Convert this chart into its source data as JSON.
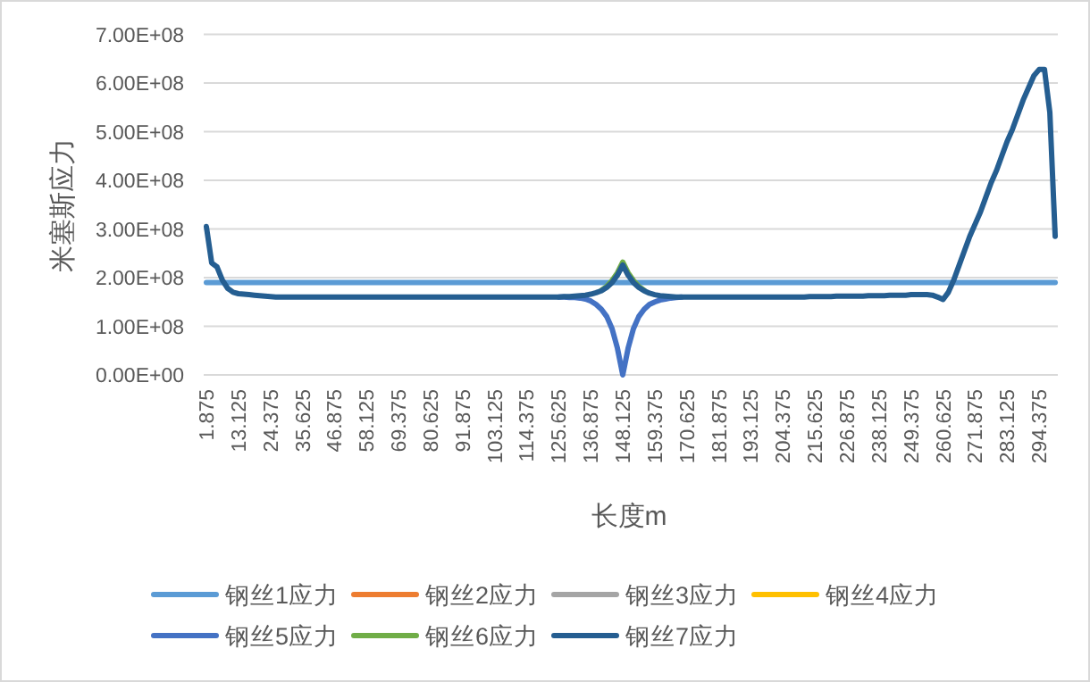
{
  "chart_data": {
    "type": "line",
    "xlabel": "长度m",
    "ylabel": "米塞斯应力",
    "categories": [
      "1.875",
      null,
      null,
      null,
      null,
      null,
      "13.125",
      null,
      null,
      null,
      null,
      null,
      "24.375",
      null,
      null,
      null,
      null,
      null,
      "35.625",
      null,
      null,
      null,
      null,
      null,
      "46.875",
      null,
      null,
      null,
      null,
      null,
      "58.125",
      null,
      null,
      null,
      null,
      null,
      "69.375",
      null,
      null,
      null,
      null,
      null,
      "80.625",
      null,
      null,
      null,
      null,
      null,
      "91.875",
      null,
      null,
      null,
      null,
      null,
      "103.125",
      null,
      null,
      null,
      null,
      null,
      "114.375",
      null,
      null,
      null,
      null,
      null,
      "125.625",
      null,
      null,
      null,
      null,
      null,
      "136.875",
      null,
      null,
      null,
      null,
      null,
      "148.125",
      null,
      null,
      null,
      null,
      null,
      "159.375",
      null,
      null,
      null,
      null,
      null,
      "170.625",
      null,
      null,
      null,
      null,
      null,
      "181.875",
      null,
      null,
      null,
      null,
      null,
      "193.125",
      null,
      null,
      null,
      null,
      null,
      "204.375",
      null,
      null,
      null,
      null,
      null,
      "215.625",
      null,
      null,
      null,
      null,
      null,
      "226.875",
      null,
      null,
      null,
      null,
      null,
      "238.125",
      null,
      null,
      null,
      null,
      null,
      "249.375",
      null,
      null,
      null,
      null,
      null,
      "260.625",
      null,
      null,
      null,
      null,
      null,
      "271.875",
      null,
      null,
      null,
      null,
      null,
      "283.125",
      null,
      null,
      null,
      null,
      null,
      "294.375",
      null,
      null,
      null
    ],
    "ylim": [
      0,
      700000000.0
    ],
    "yticks": [
      {
        "value": 0,
        "label": "0.00E+00"
      },
      {
        "value": 100000000.0,
        "label": "1.00E+08"
      },
      {
        "value": 200000000.0,
        "label": "2.00E+08"
      },
      {
        "value": 300000000.0,
        "label": "3.00E+08"
      },
      {
        "value": 400000000.0,
        "label": "4.00E+08"
      },
      {
        "value": 500000000.0,
        "label": "5.00E+08"
      },
      {
        "value": 600000000.0,
        "label": "6.00E+08"
      },
      {
        "value": 700000000.0,
        "label": "7.00E+08"
      }
    ],
    "grid": "y",
    "legend": "bottom",
    "marker": "none",
    "line_style": "solid",
    "series": [
      {
        "name": "钢丝1应力",
        "color": "#5b9bd5",
        "values": [
          190000000.0,
          190000000.0,
          190000000.0,
          190000000.0,
          190000000.0,
          190000000.0,
          190000000.0,
          190000000.0,
          190000000.0,
          190000000.0,
          190000000.0,
          190000000.0,
          190000000.0,
          190000000.0,
          190000000.0,
          190000000.0,
          190000000.0,
          190000000.0,
          190000000.0,
          190000000.0,
          190000000.0,
          190000000.0,
          190000000.0,
          190000000.0,
          190000000.0,
          190000000.0,
          190000000.0,
          190000000.0,
          190000000.0,
          190000000.0,
          190000000.0,
          190000000.0,
          190000000.0,
          190000000.0,
          190000000.0,
          190000000.0,
          190000000.0,
          190000000.0,
          190000000.0,
          190000000.0,
          190000000.0,
          190000000.0,
          190000000.0,
          190000000.0,
          190000000.0,
          190000000.0,
          190000000.0,
          190000000.0,
          190000000.0,
          190000000.0,
          190000000.0,
          190000000.0,
          190000000.0,
          190000000.0,
          190000000.0,
          190000000.0,
          190000000.0,
          190000000.0,
          190000000.0,
          190000000.0,
          190000000.0,
          190000000.0,
          190000000.0,
          190000000.0,
          190000000.0,
          190000000.0,
          190000000.0,
          190000000.0,
          190000000.0,
          190000000.0,
          190000000.0,
          190000000.0,
          190000000.0,
          190000000.0,
          190000000.0,
          190000000.0,
          190000000.0,
          190000000.0,
          190000000.0,
          190000000.0,
          190000000.0,
          190000000.0,
          190000000.0,
          190000000.0,
          190000000.0,
          190000000.0,
          190000000.0,
          190000000.0,
          190000000.0,
          190000000.0,
          190000000.0,
          190000000.0,
          190000000.0,
          190000000.0,
          190000000.0,
          190000000.0,
          190000000.0,
          190000000.0,
          190000000.0,
          190000000.0,
          190000000.0,
          190000000.0,
          190000000.0,
          190000000.0,
          190000000.0,
          190000000.0,
          190000000.0,
          190000000.0,
          190000000.0,
          190000000.0,
          190000000.0,
          190000000.0,
          190000000.0,
          190000000.0,
          190000000.0,
          190000000.0,
          190000000.0,
          190000000.0,
          190000000.0,
          190000000.0,
          190000000.0,
          190000000.0,
          190000000.0,
          190000000.0,
          190000000.0,
          190000000.0,
          190000000.0,
          190000000.0,
          190000000.0,
          190000000.0,
          190000000.0,
          190000000.0,
          190000000.0,
          190000000.0,
          190000000.0,
          190000000.0,
          190000000.0,
          190000000.0,
          190000000.0,
          190000000.0,
          190000000.0,
          190000000.0,
          190000000.0,
          190000000.0,
          190000000.0,
          190000000.0,
          190000000.0,
          190000000.0,
          190000000.0,
          190000000.0,
          190000000.0,
          190000000.0,
          190000000.0,
          190000000.0,
          190000000.0,
          190000000.0,
          190000000.0,
          190000000.0,
          190000000.0,
          190000000.0
        ]
      },
      {
        "name": "钢丝2应力",
        "color": "#ed7d31",
        "values": [
          null,
          null,
          null,
          null,
          null,
          null,
          null,
          null,
          null,
          null,
          null,
          null,
          null,
          null,
          null,
          null,
          null,
          null,
          null,
          null,
          null,
          null,
          null,
          null,
          null,
          null,
          null,
          null,
          null,
          null,
          null,
          null,
          null,
          null,
          null,
          null,
          null,
          null,
          null,
          null,
          null,
          null,
          null,
          null,
          null,
          null,
          null,
          null,
          null,
          null,
          null,
          null,
          null,
          null,
          null,
          null,
          null,
          null,
          null,
          null,
          null,
          null,
          null,
          null,
          null,
          null,
          null,
          null,
          null,
          null,
          null,
          null,
          null,
          null,
          null,
          null,
          null,
          null,
          null,
          null,
          null,
          null,
          null,
          null,
          null,
          null,
          null,
          null,
          null,
          null,
          null,
          null,
          null,
          null,
          null,
          null,
          null,
          null,
          null,
          null,
          null,
          null,
          null,
          null,
          null,
          null,
          null,
          null,
          null,
          null,
          null,
          null,
          null,
          null,
          null,
          null,
          null,
          null,
          null,
          null,
          null,
          null,
          null,
          null,
          null,
          null,
          null,
          null,
          null,
          null,
          null,
          null,
          null,
          null,
          null,
          null,
          null,
          null,
          null,
          null,
          null,
          null,
          null,
          null,
          null,
          null,
          null,
          null,
          null,
          null,
          null,
          null,
          null,
          null,
          null,
          null,
          null,
          null,
          null,
          null
        ]
      },
      {
        "name": "钢丝3应力",
        "color": "#a5a5a5",
        "values": [
          null,
          null,
          null,
          null,
          null,
          null,
          null,
          null,
          null,
          null,
          null,
          null,
          null,
          null,
          null,
          null,
          null,
          null,
          null,
          null,
          null,
          null,
          null,
          null,
          null,
          null,
          null,
          null,
          null,
          null,
          null,
          null,
          null,
          null,
          null,
          null,
          null,
          null,
          null,
          null,
          null,
          null,
          null,
          null,
          null,
          null,
          null,
          null,
          null,
          null,
          null,
          null,
          null,
          null,
          null,
          null,
          null,
          null,
          null,
          null,
          null,
          null,
          null,
          null,
          null,
          null,
          null,
          null,
          null,
          null,
          null,
          null,
          null,
          null,
          null,
          null,
          null,
          null,
          null,
          null,
          null,
          null,
          null,
          null,
          null,
          null,
          null,
          null,
          null,
          null,
          null,
          null,
          null,
          null,
          null,
          null,
          null,
          null,
          null,
          null,
          null,
          null,
          null,
          null,
          null,
          null,
          null,
          null,
          null,
          null,
          null,
          null,
          null,
          null,
          null,
          null,
          null,
          null,
          null,
          null,
          null,
          null,
          null,
          null,
          null,
          null,
          null,
          null,
          null,
          null,
          null,
          null,
          null,
          null,
          null,
          null,
          null,
          null,
          null,
          null,
          null,
          null,
          null,
          null,
          null,
          null,
          null,
          null,
          null,
          null,
          null,
          null,
          null,
          null,
          null,
          null,
          null,
          null,
          null,
          null
        ]
      },
      {
        "name": "钢丝4应力",
        "color": "#ffc000",
        "values": [
          null,
          null,
          null,
          null,
          null,
          null,
          null,
          null,
          null,
          null,
          null,
          null,
          null,
          null,
          null,
          null,
          null,
          null,
          null,
          null,
          null,
          null,
          null,
          null,
          null,
          null,
          null,
          null,
          null,
          null,
          null,
          null,
          null,
          null,
          null,
          null,
          null,
          null,
          null,
          null,
          null,
          null,
          null,
          null,
          null,
          null,
          null,
          null,
          null,
          null,
          null,
          null,
          null,
          null,
          null,
          null,
          null,
          null,
          null,
          null,
          null,
          null,
          null,
          null,
          null,
          null,
          null,
          null,
          null,
          null,
          null,
          null,
          null,
          null,
          null,
          null,
          null,
          null,
          null,
          null,
          null,
          null,
          null,
          null,
          null,
          null,
          null,
          null,
          null,
          null,
          null,
          null,
          null,
          null,
          null,
          null,
          null,
          null,
          null,
          null,
          null,
          null,
          null,
          null,
          null,
          null,
          null,
          null,
          null,
          null,
          null,
          null,
          null,
          null,
          null,
          null,
          null,
          null,
          null,
          null,
          null,
          null,
          null,
          null,
          null,
          null,
          null,
          null,
          null,
          null,
          null,
          null,
          null,
          null,
          null,
          null,
          null,
          null,
          null,
          null,
          null,
          null,
          null,
          null,
          null,
          null,
          null,
          null,
          null,
          null,
          null,
          null,
          null,
          null,
          null,
          null,
          null,
          null,
          null,
          null
        ]
      },
      {
        "name": "钢丝5应力",
        "color": "#4472c4",
        "values": [
          null,
          null,
          null,
          null,
          null,
          null,
          null,
          null,
          null,
          null,
          null,
          null,
          null,
          null,
          null,
          null,
          null,
          null,
          null,
          null,
          null,
          null,
          null,
          null,
          null,
          null,
          null,
          null,
          null,
          null,
          null,
          null,
          null,
          null,
          null,
          null,
          null,
          null,
          null,
          null,
          null,
          null,
          null,
          null,
          null,
          null,
          null,
          null,
          null,
          null,
          null,
          null,
          null,
          null,
          null,
          null,
          null,
          null,
          null,
          null,
          null,
          null,
          null,
          null,
          null,
          null,
          160000000.0,
          160000000.0,
          159000000.0,
          159000000.0,
          158000000.0,
          156000000.0,
          152000000.0,
          145000000.0,
          135000000.0,
          120000000.0,
          95000000.0,
          55000000.0,
          0,
          55000000.0,
          95000000.0,
          120000000.0,
          135000000.0,
          145000000.0,
          150000000.0,
          154000000.0,
          156000000.0,
          158000000.0,
          159000000.0,
          160000000.0,
          null,
          null,
          null,
          null,
          null,
          null,
          null,
          null,
          null,
          null,
          null,
          null,
          null,
          null,
          null,
          null,
          null,
          null,
          null,
          null,
          null,
          null,
          null,
          null,
          null,
          null,
          null,
          null,
          null,
          null,
          null,
          null,
          null,
          null,
          null,
          null,
          null,
          null,
          null,
          null,
          null,
          null,
          null,
          null,
          null,
          null,
          null,
          null,
          null,
          null,
          null,
          null,
          null,
          null,
          null,
          null,
          null,
          null,
          null,
          null,
          null,
          null,
          null,
          null,
          null,
          null,
          null,
          null,
          null,
          null
        ]
      },
      {
        "name": "钢丝6应力",
        "color": "#70ad47",
        "values": [
          null,
          null,
          null,
          null,
          null,
          null,
          null,
          null,
          null,
          null,
          null,
          null,
          null,
          null,
          null,
          null,
          null,
          null,
          null,
          null,
          null,
          null,
          null,
          null,
          null,
          null,
          null,
          null,
          null,
          null,
          null,
          null,
          null,
          null,
          null,
          null,
          null,
          null,
          null,
          null,
          null,
          null,
          null,
          null,
          null,
          null,
          null,
          null,
          null,
          null,
          null,
          null,
          null,
          null,
          null,
          null,
          null,
          null,
          null,
          null,
          null,
          null,
          null,
          null,
          null,
          null,
          null,
          null,
          null,
          null,
          null,
          null,
          null,
          null,
          174000000.0,
          182000000.0,
          194000000.0,
          210000000.0,
          232000000.0,
          210000000.0,
          194000000.0,
          182000000.0,
          174000000.0,
          null,
          null,
          null,
          null,
          null,
          null,
          null,
          null,
          null,
          null,
          null,
          null,
          null,
          null,
          null,
          null,
          null,
          null,
          null,
          null,
          null,
          null,
          null,
          null,
          null,
          null,
          null,
          null,
          null,
          null,
          null,
          null,
          null,
          null,
          null,
          null,
          null,
          null,
          null,
          null,
          null,
          null,
          null,
          null,
          null,
          null,
          null,
          null,
          null,
          null,
          null,
          null,
          null,
          null,
          null,
          null,
          null,
          null,
          null,
          null,
          null,
          null,
          null,
          null,
          null,
          null,
          null,
          null,
          null,
          null,
          null,
          null,
          null,
          null,
          null,
          null,
          null
        ]
      },
      {
        "name": "钢丝7应力",
        "color": "#255e91",
        "values": [
          305000000.0,
          230000000.0,
          222000000.0,
          195000000.0,
          178000000.0,
          170000000.0,
          167000000.0,
          166000000.0,
          165000000.0,
          164000000.0,
          163000000.0,
          162000000.0,
          161000000.0,
          160000000.0,
          160000000.0,
          160000000.0,
          160000000.0,
          160000000.0,
          160000000.0,
          160000000.0,
          160000000.0,
          160000000.0,
          160000000.0,
          160000000.0,
          160000000.0,
          160000000.0,
          160000000.0,
          160000000.0,
          160000000.0,
          160000000.0,
          160000000.0,
          160000000.0,
          160000000.0,
          160000000.0,
          160000000.0,
          160000000.0,
          160000000.0,
          160000000.0,
          160000000.0,
          160000000.0,
          160000000.0,
          160000000.0,
          160000000.0,
          160000000.0,
          160000000.0,
          160000000.0,
          160000000.0,
          160000000.0,
          160000000.0,
          160000000.0,
          160000000.0,
          160000000.0,
          160000000.0,
          160000000.0,
          160000000.0,
          160000000.0,
          160000000.0,
          160000000.0,
          160000000.0,
          160000000.0,
          160000000.0,
          160000000.0,
          160000000.0,
          160000000.0,
          160000000.0,
          160000000.0,
          160000000.0,
          161000000.0,
          161000000.0,
          162000000.0,
          163000000.0,
          164000000.0,
          166000000.0,
          169000000.0,
          173000000.0,
          180000000.0,
          190000000.0,
          205000000.0,
          226000000.0,
          205000000.0,
          190000000.0,
          180000000.0,
          173000000.0,
          168000000.0,
          165000000.0,
          163000000.0,
          162000000.0,
          161000000.0,
          160000000.0,
          160000000.0,
          160000000.0,
          160000000.0,
          160000000.0,
          160000000.0,
          160000000.0,
          160000000.0,
          160000000.0,
          160000000.0,
          160000000.0,
          160000000.0,
          160000000.0,
          160000000.0,
          160000000.0,
          160000000.0,
          160000000.0,
          160000000.0,
          160000000.0,
          160000000.0,
          160000000.0,
          160000000.0,
          160000000.0,
          160000000.0,
          160000000.0,
          161000000.0,
          161000000.0,
          161000000.0,
          161000000.0,
          161000000.0,
          162000000.0,
          162000000.0,
          162000000.0,
          162000000.0,
          162000000.0,
          162000000.0,
          163000000.0,
          163000000.0,
          163000000.0,
          163000000.0,
          164000000.0,
          164000000.0,
          164000000.0,
          164000000.0,
          165000000.0,
          165000000.0,
          165000000.0,
          165000000.0,
          164000000.0,
          160000000.0,
          155000000.0,
          170000000.0,
          195000000.0,
          225000000.0,
          255000000.0,
          285000000.0,
          310000000.0,
          335000000.0,
          365000000.0,
          395000000.0,
          420000000.0,
          450000000.0,
          480000000.0,
          505000000.0,
          535000000.0,
          565000000.0,
          590000000.0,
          615000000.0,
          628000000.0,
          628000000.0,
          540000000.0,
          285000000.0
        ]
      }
    ]
  }
}
